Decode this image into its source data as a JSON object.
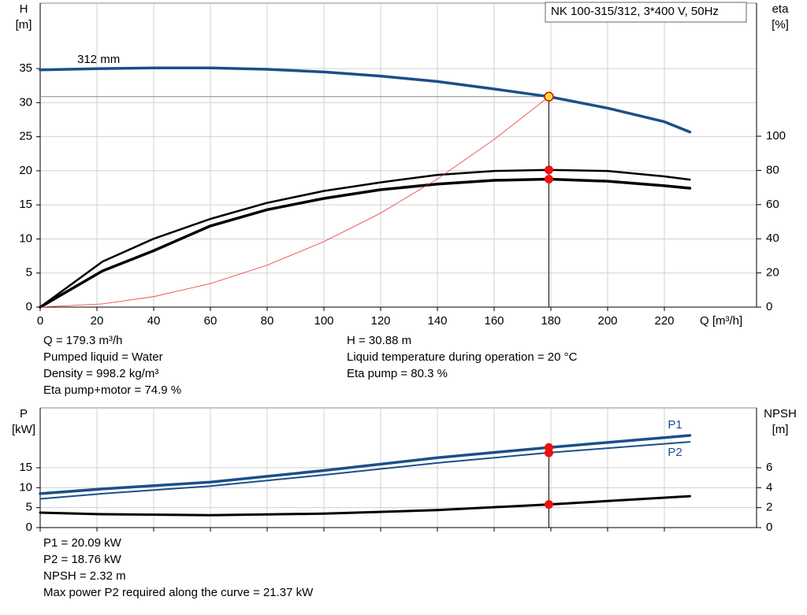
{
  "chart_data": [
    {
      "type": "line",
      "title": "NK 100-315/312, 3*400 V, 50Hz",
      "xlabel": "Q [m³/h]",
      "ylabel": "H",
      "yunit": "[m]",
      "y2label": "eta",
      "y2unit": "[%]",
      "x": [
        0,
        22,
        40,
        60,
        80,
        100,
        120,
        140,
        160,
        179.3,
        200,
        220,
        229
      ],
      "xlim": [
        0,
        252.5
      ],
      "xticks": [
        0,
        20,
        40,
        60,
        80,
        100,
        120,
        140,
        160,
        180,
        200,
        220
      ],
      "ylim": [
        0,
        44.6
      ],
      "yticks": [
        0,
        5,
        10,
        15,
        20,
        25,
        30,
        35
      ],
      "y2lim": [
        0,
        177.9
      ],
      "y2ticks": [
        0,
        20,
        40,
        60,
        80,
        100
      ],
      "grid": true,
      "operating_q": 179.3,
      "operating_h": 30.88,
      "series": [
        {
          "name": "312 mm",
          "color": "#1b4f8a",
          "width": 3.5,
          "marker": "#f5e33a",
          "values": [
            34.8,
            35.0,
            35.1,
            35.1,
            34.9,
            34.5,
            33.9,
            33.1,
            32.0,
            30.88,
            29.2,
            27.2,
            25.7
          ]
        },
        {
          "color": "#000000",
          "width": 2.5,
          "axis": "y2",
          "marker": "#ee1111",
          "values": [
            0,
            26.7,
            40,
            51.6,
            61,
            68,
            73,
            77.4,
            79.7,
            80.3,
            79.7,
            76.5,
            74.6
          ]
        },
        {
          "color": "#000000",
          "width": 3.5,
          "axis": "y2",
          "marker": "#ee1111",
          "values": [
            0,
            21.2,
            33,
            47.5,
            57,
            63.6,
            68.7,
            72,
            74.2,
            74.9,
            73.7,
            71,
            69.6
          ]
        },
        {
          "color": "#ee3333",
          "width": 0.8,
          "values": [
            0,
            0.47,
            1.54,
            3.46,
            6.15,
            9.6,
            13.8,
            18.8,
            24.6,
            30.88,
            null,
            null,
            null
          ]
        }
      ],
      "info_left": [
        "Q = 179.3 m³/h",
        "Pumped liquid = Water",
        "Density = 998.2 kg/m³",
        "Eta pump+motor = 74.9 %"
      ],
      "info_right": [
        "H = 30.88 m",
        "Liquid temperature during operation = 20 °C",
        "Eta pump = 80.3 %"
      ]
    },
    {
      "type": "line",
      "ylabel": "P",
      "yunit": "[kW]",
      "y2label": "NPSH",
      "y2unit": "[m]",
      "x": [
        0,
        22,
        60,
        100,
        140,
        179.3,
        229
      ],
      "xlim": [
        0,
        252.5
      ],
      "xticks": [
        0,
        20,
        40,
        60,
        80,
        100,
        120,
        140,
        160,
        180,
        200,
        220
      ],
      "xtick_labels": false,
      "ylim": [
        0,
        30
      ],
      "yticks": [
        0,
        5,
        10,
        15
      ],
      "y2lim": [
        0,
        12
      ],
      "y2ticks": [
        0,
        2,
        4,
        6
      ],
      "grid": true,
      "operating_q": 179.3,
      "series": [
        {
          "name": "P1",
          "color": "#1b4f8a",
          "width": 3.5,
          "marker": "#ee1111",
          "values": [
            8.5,
            9.7,
            11.4,
            14.3,
            17.5,
            20.09,
            23.1
          ]
        },
        {
          "name": "P2",
          "color": "#1b4f8a",
          "width": 2,
          "marker": "#ee1111",
          "values": [
            7.2,
            8.5,
            10.4,
            13.2,
            16.2,
            18.76,
            21.5
          ]
        },
        {
          "color": "#000000",
          "width": 3,
          "axis": "y2",
          "marker": "#ee1111",
          "values": [
            1.5,
            1.34,
            1.25,
            1.4,
            1.75,
            2.32,
            3.15
          ]
        }
      ],
      "info_left": [
        "P1 = 20.09 kW",
        "P2 = 18.76 kW",
        "NPSH = 2.32 m",
        "Max power P2 required along the curve = 21.37 kW"
      ]
    }
  ]
}
